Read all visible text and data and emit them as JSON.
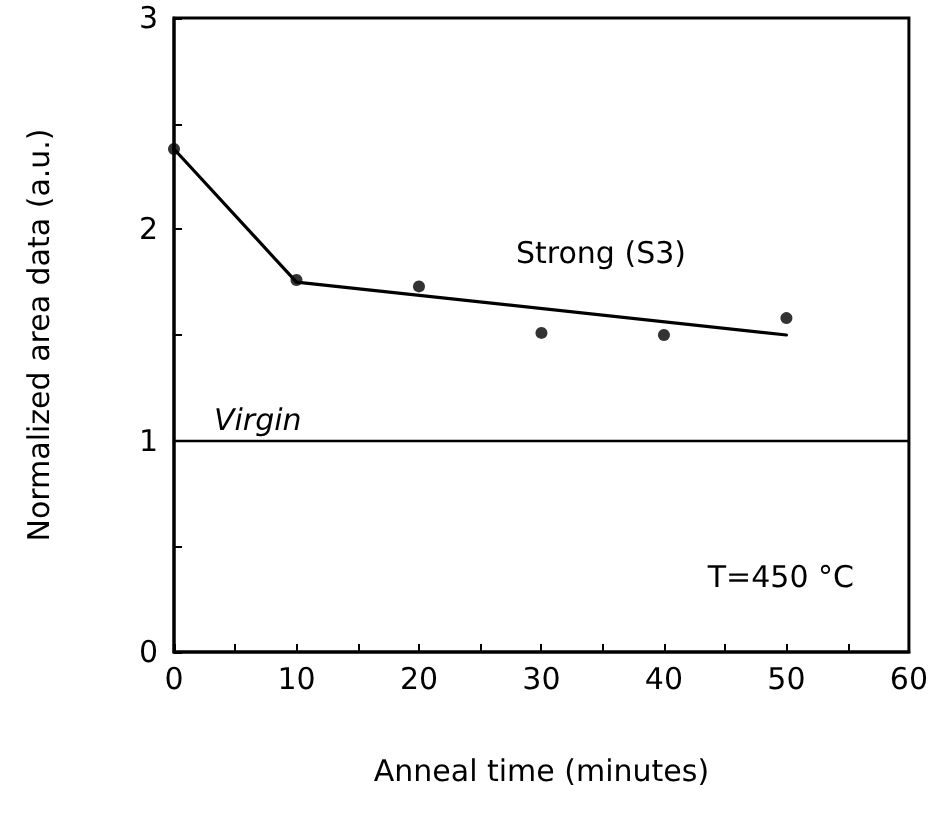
{
  "chart_data": {
    "type": "scatter",
    "xlabel": "Anneal time (minutes)",
    "ylabel": "Normalized area data (a.u.)",
    "xlim": [
      0,
      60
    ],
    "xticks": [
      0,
      10,
      20,
      30,
      40,
      50,
      60
    ],
    "ylim": [
      0,
      3
    ],
    "yticks": [
      0,
      1,
      2,
      3
    ],
    "grid": false,
    "series": [
      {
        "color": "#000000",
        "marker": "circle",
        "x": [
          0,
          10,
          20,
          30,
          40,
          50
        ],
        "values": [
          2.38,
          1.76,
          1.73,
          1.51,
          1.5,
          1.58
        ]
      },
      {
        "type": "line",
        "color": "#000000",
        "marker": "none",
        "x": [
          0,
          10,
          50
        ],
        "values": [
          2.38,
          1.75,
          1.5
        ]
      }
    ],
    "ref_lines": [
      {
        "axis": "y",
        "value": 1,
        "label": "Virgin",
        "color": "#000000"
      }
    ],
    "annotations": [
      "Strong (S3)",
      "T=450 °C"
    ]
  }
}
